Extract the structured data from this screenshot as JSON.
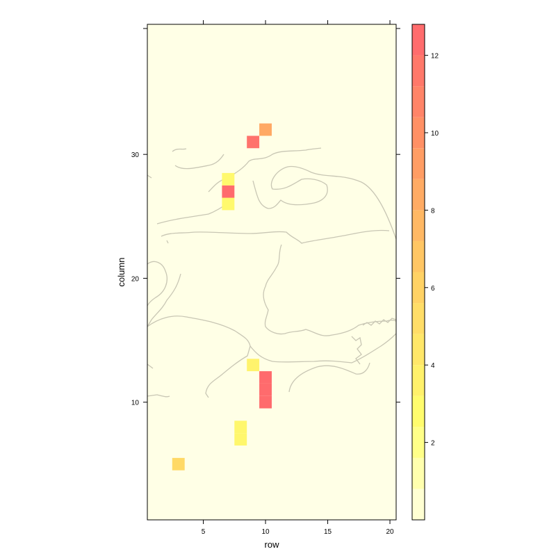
{
  "chart_data": {
    "type": "heatmap",
    "title": "",
    "xlabel": "row",
    "ylabel": "column",
    "xlim": [
      0.5,
      20.5
    ],
    "ylim": [
      0.5,
      40.5
    ],
    "x_ticks": [
      5,
      10,
      15,
      20
    ],
    "y_ticks": [
      10,
      20,
      30
    ],
    "colorbar": {
      "range": [
        0,
        12.8
      ],
      "ticks": [
        2,
        4,
        6,
        8,
        10,
        12
      ],
      "placement": "right"
    },
    "background_color": "#FFFFE6",
    "basemap": "coastlines and administrative boundaries",
    "cells": [
      {
        "row": 3,
        "column": 5,
        "value": 5.5
      },
      {
        "row": 8,
        "column": 7,
        "value": 3.2
      },
      {
        "row": 8,
        "column": 8,
        "value": 3.2
      },
      {
        "row": 9,
        "column": 13,
        "value": 3.5
      },
      {
        "row": 10,
        "column": 10,
        "value": 12.5
      },
      {
        "row": 10,
        "column": 11,
        "value": 12.5
      },
      {
        "row": 10,
        "column": 12,
        "value": 12.5
      },
      {
        "row": 7,
        "column": 26,
        "value": 3.0
      },
      {
        "row": 7,
        "column": 27,
        "value": 12.5
      },
      {
        "row": 7,
        "column": 28,
        "value": 3.0
      },
      {
        "row": 9,
        "column": 31,
        "value": 12.0
      },
      {
        "row": 10,
        "column": 32,
        "value": 8.5
      }
    ]
  }
}
